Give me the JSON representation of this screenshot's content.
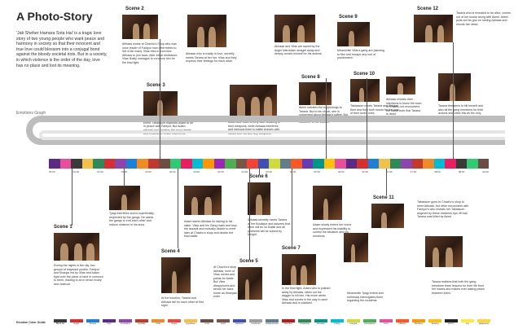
{
  "title": "A Photo-Story",
  "intro": "'Jab Sheher Hamara Sota Hai' is a tragic love story of two young people who want peace and harmony in society so that their innocent and true love could blossom into a conjugal bond against the bloody societal riots. But in a society, in which violence is the order of the day, love has no place and lost its meaning.",
  "emotions_graph_label": "Emotions Graph",
  "emotion_guide_label": "Emotion Color Guide",
  "scenes": [
    {
      "label": "Scene 1",
      "caption": "During the nights in the city, two groups of wayward youths, Fantyur and Khanjar led by Vilas and Adam, fight over the piece of land in common to them, leading to an in tense rivalry and violence."
    },
    {
      "label": "Scene 2",
      "caption": "Abhaas works at Chachu's Shop who was once leader of Fantyur now determined to live a fair many. Vilas tries to convince Abhaas to join back. After initial resistance, Vilas finally manages to convince him for the final fight."
    },
    {
      "label": "Scene 3",
      "caption": "Tarana is excited about the upcoming event. Tabassum requests Adam to be in peace with Fantyur. But Adam refuses and explains the good deeds and endurance which lead to the present rivalry."
    },
    {
      "label": "Scene 4",
      "caption": "At the function, Tarana and Abhaas fall for each other at first sight."
    },
    {
      "label": "Scene 5",
      "caption": "At Chachu's shop Abhaas, lover of Vilas comes and paints for battle. But Vilas disapproves and sends her back home as Khanjars enter."
    },
    {
      "label": "Scene 6",
      "caption": "Abhaas secretly meets Tarana at her Boutique and assures that there will be no Battle and all problems will be solved by tonight."
    },
    {
      "label": "Scene 7",
      "caption": "In the final fight, Adam who is pushed away by Abhaas, takes out the dagger to kill him. His move alerts Vilas and comes in the way to save Abhaas and is stabbed."
    },
    {
      "label": "Scene 8",
      "caption": "Akeel narrates the happenings to Tarana. But to his shock, she is concerned about Abhaas's safety. But then she realizes Abhaas is the murderer of her brother."
    },
    {
      "label": "Scene 9",
      "caption": "Meanwhile Vilas's gang are planning to flee and escape any sort of punishment."
    },
    {
      "label": "Scene 10",
      "caption": "Tabassum meets Tarana and Abhaas then and they both mourn for the loss of their loved ones."
    },
    {
      "label": "Scene 11",
      "caption": "Tabassum goes to Chachu's shop to meet Abhaas, but other encounters with Fantyur's who reveals her Tabassum angered by these incidents rips off that Tarana was killed by Akeel."
    },
    {
      "label": "Scene 12",
      "caption": "Tarana who is revealed to be alive, comes out of her house along with Akeel. Akeel pulls out his gun on seeing Abhaas and shoots him dead."
    }
  ],
  "extra_captions": [
    "Abhaas who is madly in love, secretly meets Tarana at her hut. Vilas and they express their feelings for each other.",
    "Adam and Vilas fiercely start boasting of their weapons, while Abhaas interferes and instructs them to battle bravely with hands and not with any weapons.",
    "Abhaas and Vilas are saved by the anger kills Adam straight away and deeply curses himself for his actions.",
    "Tyagi interferes and is superficially respected by the gangs. He wants the gangs to end each other and reduce violence in his area.",
    "Adam slowly enters her home and expressed his inability to control the situation and his emotions.",
    "Meanwhile Tyagi enters and ruthlessly interrogates them regarding the incidents.",
    "Abhaas reveals their intentions to leave the town to Chachu but encounters the harsh truth that Tarana is dead.",
    "Tarana threatens to kill herself and also all the gang members for their actions and cities this as the only possible solution for their rivalry.",
    "Adam stares Abhaas for talking to his sister. Vilas and his Gang rivals and stop the assault and mutually decide to meet later at Chachu's shop and decide the final battle.",
    "Tarana realises that both the gang members learn lessons for their life from her losses and makes ever lasting peace between them."
  ],
  "timeline_colors": [
    "#5b2a86",
    "#e84e9a",
    "#3a3a3a",
    "#f3c14a",
    "#2e8b57",
    "#d62f2f",
    "#8e44ad",
    "#1e7fd6",
    "#f08a24",
    "#c0392b",
    "#6d4c41",
    "#2ecc71",
    "#e91e63",
    "#00bcd4",
    "#ff9800",
    "#9c27b0",
    "#4caf50",
    "#795548",
    "#f44336",
    "#3f51b5",
    "#cddc39",
    "#607d8b",
    "#ff5722",
    "#673ab7",
    "#009688",
    "#ffc107",
    "#e84e9a",
    "#5b2a86",
    "#d62f2f",
    "#1e7fd6",
    "#f3c14a",
    "#2e8b57",
    "#8e44ad",
    "#c0392b",
    "#f08a24",
    "#00bcd4",
    "#e91e63",
    "#3a3a3a",
    "#2ecc71",
    "#6d4c41"
  ],
  "tick_labels": [
    "00:00",
    "00:26",
    "01:00",
    "01:30",
    "02:00",
    "02:30",
    "03:00",
    "03:30",
    "04:00",
    "04:30",
    "05:00",
    "05:30",
    "06:00",
    "06:30",
    "07:00",
    "07:30",
    "08:00",
    "08:30",
    "09:00"
  ],
  "legend": [
    {
      "name": "Black wit",
      "color": "#3a3a3a"
    },
    {
      "name": "Anger",
      "color": "#d62f2f"
    },
    {
      "name": "Serene",
      "color": "#1e7fd6"
    },
    {
      "name": "Fear",
      "color": "#5b2a86"
    },
    {
      "name": "Frustration",
      "color": "#8e44ad"
    },
    {
      "name": "Hostility",
      "color": "#c0392b"
    },
    {
      "name": "Thrill",
      "color": "#f08a24"
    },
    {
      "name": "Anger",
      "color": "#e74c3c"
    },
    {
      "name": "Joy/Cheer",
      "color": "#f3c14a"
    },
    {
      "name": "Guilt",
      "color": "#6d4c41"
    },
    {
      "name": "Grief",
      "color": "#795548"
    },
    {
      "name": "Sadness",
      "color": "#3f51b5"
    },
    {
      "name": "Confusion",
      "color": "#9e9e9e"
    },
    {
      "name": "Helplessness",
      "color": "#607d8b"
    },
    {
      "name": "Sacrifice",
      "color": "#b71c1c"
    },
    {
      "name": "Protecting",
      "color": "#2e8b57"
    },
    {
      "name": "Resolve",
      "color": "#009688"
    },
    {
      "name": "Clarity",
      "color": "#00bcd4"
    },
    {
      "name": "Forgive",
      "color": "#cddc39"
    },
    {
      "name": "Acceptance",
      "color": "#4caf50"
    },
    {
      "name": "Love",
      "color": "#e84e9a"
    },
    {
      "name": "Infliction",
      "color": "#ff5722"
    },
    {
      "name": "Bonding",
      "color": "#ff9800"
    },
    {
      "name": "Teasing",
      "color": "#ffc107"
    },
    {
      "name": "Horror",
      "color": "#212121"
    },
    {
      "name": "Joy",
      "color": "#ffeb3b"
    },
    {
      "name": "Happiness",
      "color": "#fdd835"
    }
  ]
}
